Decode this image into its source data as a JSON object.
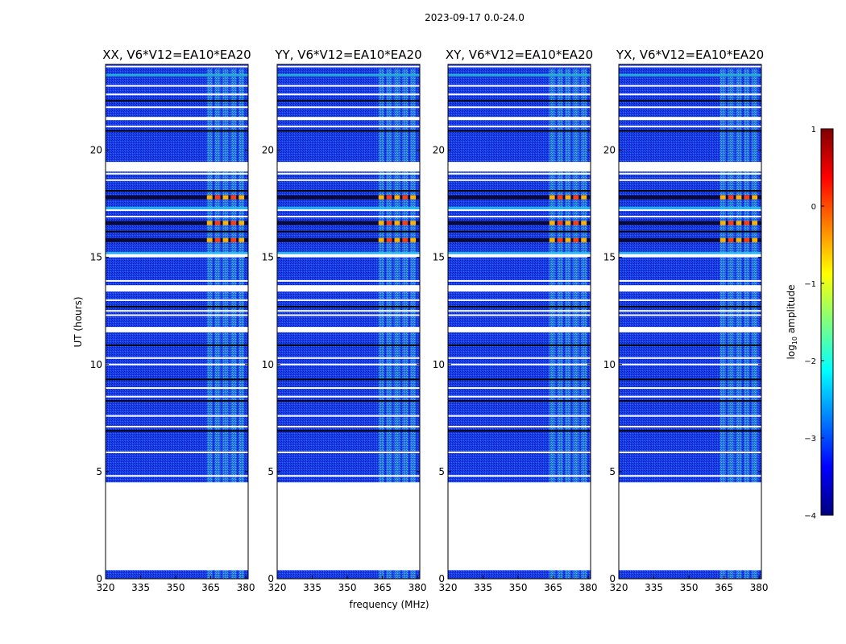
{
  "chart_data": {
    "type": "heatmap",
    "suptitle": "2023-09-17 0.0-24.0",
    "xlabel": "frequency (MHz)",
    "ylabel": "UT (hours)",
    "xlim": [
      320,
      381
    ],
    "ylim": [
      0,
      24
    ],
    "x_ticks": [
      "320",
      "335",
      "350",
      "365",
      "380"
    ],
    "x_tick_values": [
      320,
      335,
      350,
      365,
      380
    ],
    "y_ticks": [
      "0",
      "5",
      "10",
      "15",
      "20"
    ],
    "y_tick_values": [
      0,
      5,
      10,
      15,
      20
    ],
    "panels": [
      {
        "title": "XX, V6*V12=EA10*EA20",
        "pol": "XX",
        "ylabel_shown": true
      },
      {
        "title": "YY, V6*V12=EA10*EA20",
        "pol": "YY",
        "ylabel_shown": false
      },
      {
        "title": "XY, V6*V12=EA10*EA20",
        "pol": "XY",
        "ylabel_shown": false
      },
      {
        "title": "YX, V6*V12=EA10*EA20",
        "pol": "YX",
        "ylabel_shown": false
      }
    ],
    "data_gaps_ut": [
      [
        0.4,
        4.5
      ],
      [
        19.0,
        19.45
      ],
      [
        21.4,
        21.55
      ],
      [
        13.4,
        13.7
      ],
      [
        11.5,
        11.75
      ],
      [
        15.0,
        15.15
      ]
    ],
    "flagged_rows_ut": [
      0.45,
      4.8,
      5.9,
      6.9,
      7.1,
      7.6,
      8.3,
      8.5,
      8.9,
      9.3,
      10.0,
      10.3,
      10.9,
      12.3,
      12.5,
      12.7,
      13.0,
      13.9,
      16.2,
      16.9,
      17.2,
      18.1,
      18.6,
      18.9,
      20.9,
      21.1,
      22.0,
      22.3,
      22.6,
      23.0,
      23.5,
      23.9
    ],
    "high_amplitude_rows_ut": [
      15.8,
      16.6,
      17.8
    ],
    "rfi_band_mhz": [
      363,
      380
    ],
    "colorbar": {
      "label": "log",
      "label_sub": "10",
      "label_suffix": " amplitude",
      "ticks": [
        "1",
        "0",
        "−1",
        "−2",
        "−3",
        "−4"
      ],
      "tick_values": [
        1,
        0,
        -1,
        -2,
        -3,
        -4
      ],
      "range": [
        -4,
        1
      ],
      "colormap": "jet",
      "colormap_stops": [
        "#00007f",
        "#0000ff",
        "#007fff",
        "#00ffff",
        "#7fff7f",
        "#ffff00",
        "#ff7f00",
        "#ff0000",
        "#7f0000"
      ]
    }
  }
}
